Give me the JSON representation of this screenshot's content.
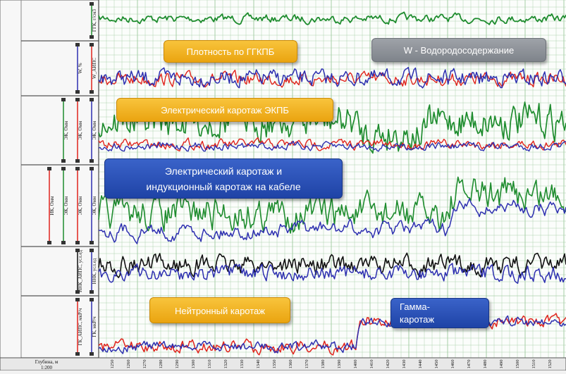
{
  "tracks": [
    {
      "id": "t1",
      "labels": [
        "ГГК, г/см3"
      ]
    },
    {
      "id": "t2",
      "labels": [
        "W, %",
        "W_АИПС"
      ]
    },
    {
      "id": "t3",
      "labels": [
        "ЭК, Омм",
        "ЭК, Омм",
        "ЭК, Омм"
      ]
    },
    {
      "id": "t4",
      "labels": [
        "ИК, Омм",
        "ЭК, Омм",
        "ЭК, Омм",
        "ЭК, Омм"
      ]
    },
    {
      "id": "t5",
      "labels": [
        "ННК_АИПС, усл.ед",
        "ННК, усл.ед"
      ]
    },
    {
      "id": "t6",
      "labels": [
        "ГК_АИПС, мкР/ч",
        "ГК, мкР/ч"
      ]
    }
  ],
  "depth_header": {
    "title": "Глубина, м",
    "scale": "1:200"
  },
  "depth_ticks": [
    "1250",
    "1260",
    "1270",
    "1280",
    "1290",
    "1300",
    "1310",
    "1320",
    "1330",
    "1340",
    "1350",
    "1360",
    "1370",
    "1380",
    "1390",
    "1400",
    "1410",
    "1420",
    "1430",
    "1440",
    "1450",
    "1460",
    "1470",
    "1480",
    "1490",
    "1500",
    "1510",
    "1520"
  ],
  "callouts": {
    "density": "Плотность по ГГКПБ",
    "hydrogen": "W - Водородосодержание",
    "ekpb": "Электрический каротаж ЭКПБ",
    "cable_line1": "Электрический каротаж и",
    "cable_line2": "индукционный каротаж на кабеле",
    "neutron": "Нейтронный каротаж",
    "gamma_line1": "Гамма-",
    "gamma_line2": "каротаж"
  },
  "colors": {
    "green": "#1e8c2e",
    "red": "#e0231c",
    "blue": "#2d2fb0",
    "black": "#111111",
    "orange": "#f0b020",
    "grey": "#8a8f96",
    "callout_blue": "#2a52b8",
    "grid": "#9ec99e"
  }
}
